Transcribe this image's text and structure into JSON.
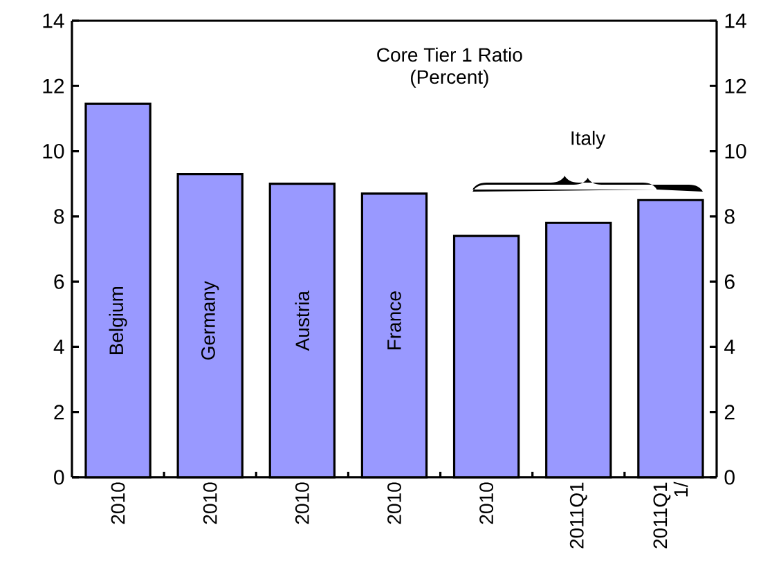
{
  "chart_data": {
    "type": "bar",
    "title": "Core Tier 1 Ratio",
    "subtitle": "(Percent)",
    "categories": [
      "2010",
      "2010",
      "2010",
      "2010",
      "2010",
      "2011Q1",
      "2011Q1 1/"
    ],
    "values": [
      11.45,
      9.3,
      9.0,
      8.7,
      7.4,
      7.8,
      8.5
    ],
    "color": "#9999ff",
    "annotations": [
      "Belgium",
      "Germany",
      "Austria",
      "France",
      "Italy"
    ],
    "ylim": [
      0,
      14
    ],
    "yticks": [
      0,
      2,
      4,
      6,
      8,
      10,
      12,
      14
    ],
    "y2lim": [
      0,
      14
    ],
    "y2ticks": [
      0,
      2,
      4,
      6,
      8,
      10,
      12,
      14
    ]
  }
}
